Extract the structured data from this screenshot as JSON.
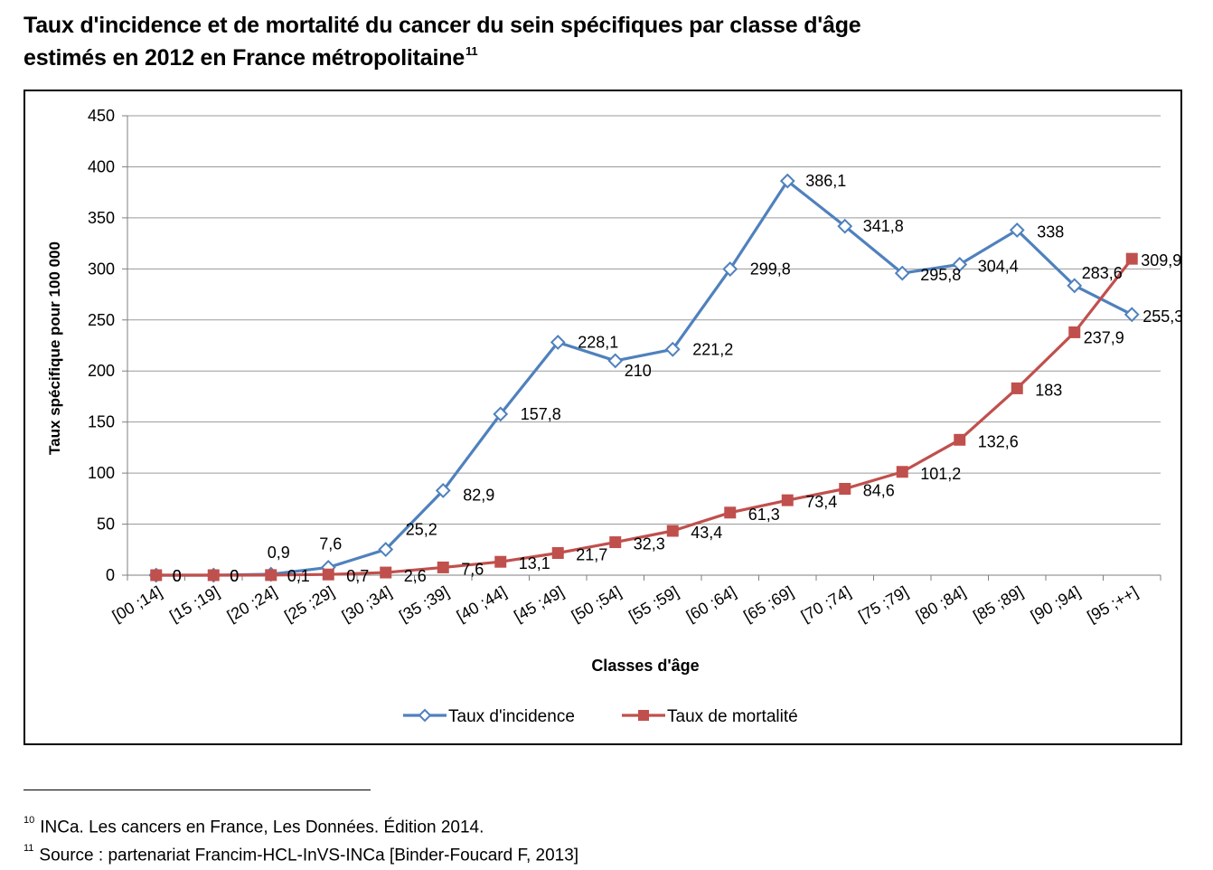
{
  "title": {
    "line1": "Taux d'incidence et de mortalité du cancer du sein spécifiques par classe d'âge",
    "line2": "estimés en 2012 en France métropolitaine",
    "footnote_ref": "11"
  },
  "chart_data": {
    "type": "line",
    "xlabel": "Classes d'âge",
    "ylabel": "Taux spécifique pour 100 000",
    "ylim": [
      0,
      450
    ],
    "yticks": [
      "0",
      "50",
      "100",
      "150",
      "200",
      "250",
      "300",
      "350",
      "400",
      "450"
    ],
    "grid": true,
    "legend_position": "bottom",
    "categories": [
      "[00 ;14]",
      "[15 ;19]",
      "[20 ;24]",
      "[25 ;29]",
      "[30 ;34]",
      "[35 ;39]",
      "[40 ;44]",
      "[45 ;49]",
      "[50 ;54]",
      "[55 ;59]",
      "[60 ;64]",
      "[65 ;69]",
      "[70 ;74]",
      "[75 ;79]",
      "[80 ;84]",
      "[85 ;89]",
      "[90 ;94]",
      "[95 ;++]"
    ],
    "series": [
      {
        "name": "Taux d'incidence",
        "color": "#4F81BD",
        "marker": "diamond-open",
        "values": [
          0,
          0,
          0.9,
          7.6,
          25.2,
          82.9,
          157.8,
          228.1,
          210,
          221.2,
          299.8,
          386.1,
          341.8,
          295.8,
          304.4,
          338,
          283.6,
          255.3
        ],
        "labels": [
          "0",
          "0",
          "0,9",
          "7,6",
          "25,2",
          "82,9",
          "157,8",
          "228,1",
          "210",
          "221,2",
          "299,8",
          "386,1",
          "341,8",
          "295,8",
          "304,4",
          "338",
          "283,6",
          "255,3"
        ]
      },
      {
        "name": "Taux de mortalité",
        "color": "#C0504D",
        "marker": "square-filled",
        "values": [
          0,
          0,
          0.1,
          0.7,
          2.6,
          7.6,
          13.1,
          21.7,
          32.3,
          43.4,
          61.3,
          73.4,
          84.6,
          101.2,
          132.6,
          183,
          237.9,
          309.9
        ],
        "labels": [
          "0",
          "0",
          "0,1",
          "0,7",
          "2,6",
          "7,6",
          "13,1",
          "21,7",
          "32,3",
          "43,4",
          "61,3",
          "73,4",
          "84,6",
          "101,2",
          "132,6",
          "183",
          "237,9",
          "309,9"
        ]
      }
    ]
  },
  "footnotes": [
    {
      "num": "10",
      "text": "INCa. Les cancers en France, Les Données. Édition 2014."
    },
    {
      "num": "11",
      "text": "Source : partenariat Francim-HCL-InVS-INCa [Binder-Foucard F, 2013]"
    }
  ]
}
